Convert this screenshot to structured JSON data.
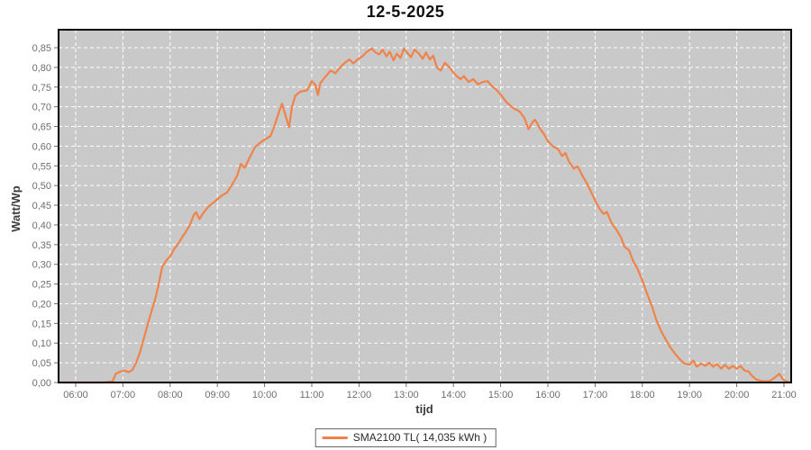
{
  "window": {
    "title": "12-5-2025"
  },
  "colors": {
    "page_background": "#FFFFFF",
    "plot_background": "#C9C9C9",
    "grid_line": "#FFFFFF",
    "axis_frame": "#000000",
    "tick_mark": "#6e6e6e",
    "tick_label": "#6e6e6e",
    "axis_label": "#3c3c3c",
    "title": "#111111",
    "legend_border": "#666666",
    "series_orange": "#EF8349"
  },
  "legend": {
    "label": "SMA2100 TL( 14,035 kWh )",
    "energy_value": "14,035 kWh",
    "inverter": "SMA2100 TL"
  },
  "chart_data": {
    "type": "line",
    "title": "12-5-2025",
    "xlabel": "tijd",
    "ylabel": "Watt/Wp",
    "grid": true,
    "legend_position": "bottom-center",
    "x_ticks": [
      "06:00",
      "07:00",
      "08:00",
      "09:00",
      "10:00",
      "11:00",
      "12:00",
      "13:00",
      "14:00",
      "15:00",
      "16:00",
      "17:00",
      "18:00",
      "19:00",
      "20:00",
      "21:00"
    ],
    "x_tick_hours": [
      6,
      7,
      8,
      9,
      10,
      11,
      12,
      13,
      14,
      15,
      16,
      17,
      18,
      19,
      20,
      21
    ],
    "y_ticks": [
      "0,00",
      "0,05",
      "0,10",
      "0,15",
      "0,20",
      "0,25",
      "0,30",
      "0,35",
      "0,40",
      "0,45",
      "0,50",
      "0,55",
      "0,60",
      "0,65",
      "0,70",
      "0,75",
      "0,80",
      "0,85"
    ],
    "y_tick_values": [
      0,
      0.05,
      0.1,
      0.15,
      0.2,
      0.25,
      0.3,
      0.35,
      0.4,
      0.45,
      0.5,
      0.55,
      0.6,
      0.65,
      0.7,
      0.75,
      0.8,
      0.85
    ],
    "xlim_hours": [
      5.64,
      21.15
    ],
    "ylim": [
      0,
      0.898
    ],
    "series": [
      {
        "name": "SMA2100 TL( 14,035 kWh )",
        "color": "#EF8349",
        "points": [
          [
            5.65,
            0
          ],
          [
            6.0,
            0
          ],
          [
            6.3,
            0
          ],
          [
            6.6,
            0
          ],
          [
            6.78,
            0.003
          ],
          [
            6.85,
            0.022
          ],
          [
            6.95,
            0.028
          ],
          [
            7.05,
            0.03
          ],
          [
            7.12,
            0.026
          ],
          [
            7.2,
            0.032
          ],
          [
            7.28,
            0.05
          ],
          [
            7.37,
            0.08
          ],
          [
            7.45,
            0.115
          ],
          [
            7.53,
            0.15
          ],
          [
            7.6,
            0.178
          ],
          [
            7.68,
            0.21
          ],
          [
            7.75,
            0.245
          ],
          [
            7.83,
            0.293
          ],
          [
            7.92,
            0.31
          ],
          [
            8.0,
            0.32
          ],
          [
            8.08,
            0.338
          ],
          [
            8.17,
            0.352
          ],
          [
            8.25,
            0.368
          ],
          [
            8.33,
            0.382
          ],
          [
            8.42,
            0.4
          ],
          [
            8.5,
            0.425
          ],
          [
            8.55,
            0.432
          ],
          [
            8.62,
            0.415
          ],
          [
            8.7,
            0.43
          ],
          [
            8.8,
            0.445
          ],
          [
            8.9,
            0.455
          ],
          [
            9.0,
            0.465
          ],
          [
            9.1,
            0.475
          ],
          [
            9.2,
            0.482
          ],
          [
            9.3,
            0.5
          ],
          [
            9.42,
            0.525
          ],
          [
            9.5,
            0.555
          ],
          [
            9.58,
            0.545
          ],
          [
            9.7,
            0.575
          ],
          [
            9.8,
            0.598
          ],
          [
            9.9,
            0.608
          ],
          [
            10.0,
            0.617
          ],
          [
            10.12,
            0.625
          ],
          [
            10.2,
            0.648
          ],
          [
            10.3,
            0.685
          ],
          [
            10.37,
            0.708
          ],
          [
            10.45,
            0.675
          ],
          [
            10.52,
            0.648
          ],
          [
            10.58,
            0.7
          ],
          [
            10.65,
            0.728
          ],
          [
            10.75,
            0.738
          ],
          [
            10.9,
            0.742
          ],
          [
            11.0,
            0.765
          ],
          [
            11.08,
            0.755
          ],
          [
            11.13,
            0.73
          ],
          [
            11.18,
            0.76
          ],
          [
            11.3,
            0.778
          ],
          [
            11.4,
            0.792
          ],
          [
            11.5,
            0.785
          ],
          [
            11.6,
            0.8
          ],
          [
            11.7,
            0.812
          ],
          [
            11.8,
            0.82
          ],
          [
            11.88,
            0.81
          ],
          [
            11.97,
            0.82
          ],
          [
            12.07,
            0.828
          ],
          [
            12.17,
            0.84
          ],
          [
            12.27,
            0.848
          ],
          [
            12.35,
            0.838
          ],
          [
            12.43,
            0.833
          ],
          [
            12.5,
            0.845
          ],
          [
            12.58,
            0.828
          ],
          [
            12.65,
            0.84
          ],
          [
            12.73,
            0.818
          ],
          [
            12.8,
            0.835
          ],
          [
            12.88,
            0.824
          ],
          [
            12.95,
            0.848
          ],
          [
            13.03,
            0.836
          ],
          [
            13.1,
            0.826
          ],
          [
            13.18,
            0.845
          ],
          [
            13.27,
            0.835
          ],
          [
            13.35,
            0.822
          ],
          [
            13.42,
            0.838
          ],
          [
            13.5,
            0.82
          ],
          [
            13.57,
            0.83
          ],
          [
            13.65,
            0.8
          ],
          [
            13.73,
            0.792
          ],
          [
            13.82,
            0.812
          ],
          [
            13.9,
            0.802
          ],
          [
            13.98,
            0.79
          ],
          [
            14.05,
            0.78
          ],
          [
            14.15,
            0.77
          ],
          [
            14.22,
            0.778
          ],
          [
            14.32,
            0.763
          ],
          [
            14.42,
            0.77
          ],
          [
            14.52,
            0.757
          ],
          [
            14.62,
            0.763
          ],
          [
            14.72,
            0.765
          ],
          [
            14.82,
            0.752
          ],
          [
            14.92,
            0.742
          ],
          [
            15.0,
            0.731
          ],
          [
            15.12,
            0.712
          ],
          [
            15.25,
            0.698
          ],
          [
            15.4,
            0.688
          ],
          [
            15.5,
            0.672
          ],
          [
            15.59,
            0.643
          ],
          [
            15.68,
            0.662
          ],
          [
            15.73,
            0.667
          ],
          [
            15.83,
            0.645
          ],
          [
            15.92,
            0.63
          ],
          [
            16.0,
            0.613
          ],
          [
            16.1,
            0.6
          ],
          [
            16.22,
            0.592
          ],
          [
            16.3,
            0.575
          ],
          [
            16.37,
            0.583
          ],
          [
            16.45,
            0.56
          ],
          [
            16.55,
            0.543
          ],
          [
            16.63,
            0.549
          ],
          [
            16.73,
            0.525
          ],
          [
            16.83,
            0.505
          ],
          [
            16.92,
            0.483
          ],
          [
            17.0,
            0.462
          ],
          [
            17.1,
            0.44
          ],
          [
            17.18,
            0.428
          ],
          [
            17.25,
            0.433
          ],
          [
            17.35,
            0.405
          ],
          [
            17.45,
            0.388
          ],
          [
            17.55,
            0.368
          ],
          [
            17.62,
            0.345
          ],
          [
            17.72,
            0.336
          ],
          [
            17.8,
            0.31
          ],
          [
            17.9,
            0.288
          ],
          [
            18.0,
            0.259
          ],
          [
            18.1,
            0.226
          ],
          [
            18.2,
            0.195
          ],
          [
            18.3,
            0.158
          ],
          [
            18.4,
            0.13
          ],
          [
            18.5,
            0.108
          ],
          [
            18.6,
            0.088
          ],
          [
            18.7,
            0.072
          ],
          [
            18.8,
            0.058
          ],
          [
            18.9,
            0.048
          ],
          [
            19.0,
            0.045
          ],
          [
            19.08,
            0.056
          ],
          [
            19.15,
            0.04
          ],
          [
            19.25,
            0.048
          ],
          [
            19.33,
            0.042
          ],
          [
            19.42,
            0.05
          ],
          [
            19.5,
            0.04
          ],
          [
            19.58,
            0.047
          ],
          [
            19.67,
            0.035
          ],
          [
            19.75,
            0.045
          ],
          [
            19.83,
            0.035
          ],
          [
            19.92,
            0.042
          ],
          [
            20.0,
            0.035
          ],
          [
            20.08,
            0.042
          ],
          [
            20.17,
            0.03
          ],
          [
            20.25,
            0.028
          ],
          [
            20.33,
            0.016
          ],
          [
            20.42,
            0.007
          ],
          [
            20.52,
            0.004
          ],
          [
            20.62,
            0.003
          ],
          [
            20.72,
            0.005
          ],
          [
            20.82,
            0.014
          ],
          [
            20.9,
            0.022
          ],
          [
            20.97,
            0.01
          ],
          [
            21.02,
            0.004
          ],
          [
            21.09,
            0.002
          ]
        ]
      }
    ]
  }
}
